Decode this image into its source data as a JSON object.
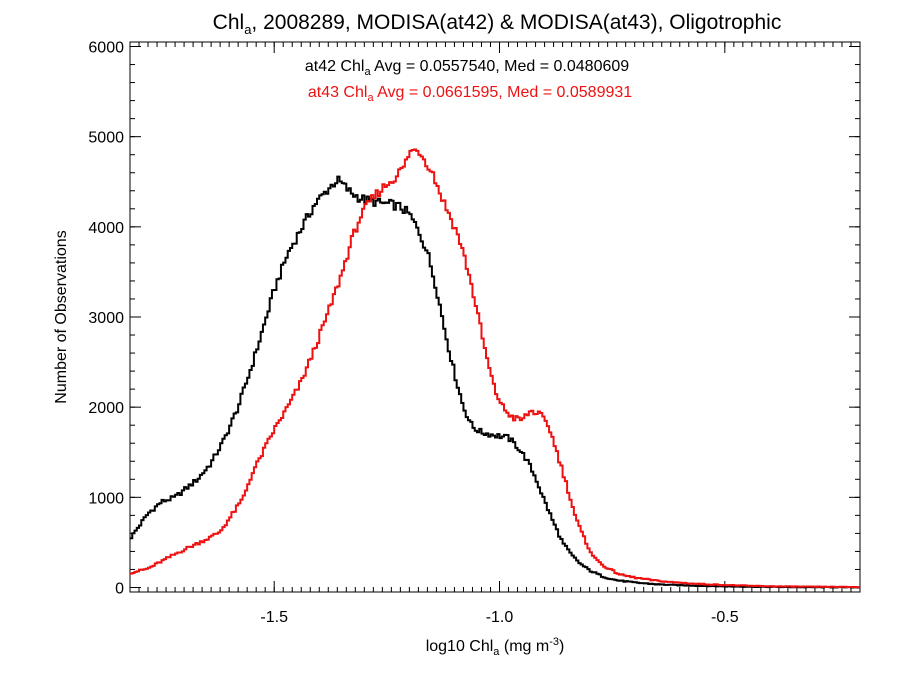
{
  "chart_data": {
    "type": "histogram-step",
    "title": {
      "prefix": "Chl",
      "subscript": "a",
      "suffix": ", 2008289, MODISA(at42) & MODISA(at43), Oligotrophic"
    },
    "xlabel": {
      "prefix": "log10 Chl",
      "subscript": "a",
      "middle": " (mg m",
      "superscript": "-3",
      "suffix": ")"
    },
    "ylabel": "Number of Observations",
    "xlim": [
      -1.82,
      -0.2
    ],
    "ylim": [
      -50,
      6050
    ],
    "xticks": [
      -1.5,
      -1.0,
      -0.5
    ],
    "xtick_labels": [
      "-1.5",
      "-1.0",
      "-0.5"
    ],
    "yticks": [
      0,
      1000,
      2000,
      3000,
      4000,
      5000,
      6000
    ],
    "ytick_labels": [
      "0",
      "1000",
      "2000",
      "3000",
      "4000",
      "5000",
      "6000"
    ],
    "grid": false,
    "series": [
      {
        "name": "at42",
        "color": "#000000",
        "stats": {
          "prefix": "at42 Chl",
          "subscript": "a",
          "suffix": " Avg = 0.0557540, Med = 0.0480609"
        },
        "points": [
          [
            -1.82,
            540
          ],
          [
            -1.78,
            820
          ],
          [
            -1.75,
            950
          ],
          [
            -1.72,
            1000
          ],
          [
            -1.7,
            1080
          ],
          [
            -1.67,
            1200
          ],
          [
            -1.64,
            1380
          ],
          [
            -1.61,
            1650
          ],
          [
            -1.58,
            2000
          ],
          [
            -1.55,
            2450
          ],
          [
            -1.52,
            2950
          ],
          [
            -1.5,
            3300
          ],
          [
            -1.47,
            3700
          ],
          [
            -1.44,
            3980
          ],
          [
            -1.41,
            4250
          ],
          [
            -1.38,
            4420
          ],
          [
            -1.36,
            4520
          ],
          [
            -1.35,
            4480
          ],
          [
            -1.33,
            4380
          ],
          [
            -1.31,
            4320
          ],
          [
            -1.29,
            4290
          ],
          [
            -1.26,
            4260
          ],
          [
            -1.24,
            4250
          ],
          [
            -1.22,
            4220
          ],
          [
            -1.2,
            4140
          ],
          [
            -1.18,
            3960
          ],
          [
            -1.16,
            3720
          ],
          [
            -1.14,
            3320
          ],
          [
            -1.12,
            2820
          ],
          [
            -1.1,
            2380
          ],
          [
            -1.08,
            2000
          ],
          [
            -1.06,
            1780
          ],
          [
            -1.04,
            1720
          ],
          [
            -1.01,
            1690
          ],
          [
            -0.98,
            1660
          ],
          [
            -0.96,
            1560
          ],
          [
            -0.94,
            1420
          ],
          [
            -0.92,
            1220
          ],
          [
            -0.9,
            960
          ],
          [
            -0.88,
            720
          ],
          [
            -0.86,
            500
          ],
          [
            -0.84,
            360
          ],
          [
            -0.82,
            260
          ],
          [
            -0.8,
            190
          ],
          [
            -0.77,
            120
          ],
          [
            -0.74,
            80
          ],
          [
            -0.7,
            55
          ],
          [
            -0.65,
            35
          ],
          [
            -0.6,
            25
          ],
          [
            -0.5,
            12
          ],
          [
            -0.4,
            6
          ],
          [
            -0.3,
            3
          ],
          [
            -0.2,
            2
          ]
        ]
      },
      {
        "name": "at43",
        "color": "#ee1111",
        "stats": {
          "prefix": "at43 Chl",
          "subscript": "a",
          "suffix": " Avg = 0.0661595, Med = 0.0589931"
        },
        "points": [
          [
            -1.82,
            160
          ],
          [
            -1.78,
            210
          ],
          [
            -1.75,
            290
          ],
          [
            -1.72,
            370
          ],
          [
            -1.7,
            420
          ],
          [
            -1.67,
            490
          ],
          [
            -1.64,
            560
          ],
          [
            -1.62,
            620
          ],
          [
            -1.6,
            760
          ],
          [
            -1.57,
            980
          ],
          [
            -1.55,
            1250
          ],
          [
            -1.52,
            1550
          ],
          [
            -1.5,
            1750
          ],
          [
            -1.47,
            2000
          ],
          [
            -1.44,
            2280
          ],
          [
            -1.41,
            2650
          ],
          [
            -1.38,
            3050
          ],
          [
            -1.35,
            3480
          ],
          [
            -1.33,
            3820
          ],
          [
            -1.31,
            4100
          ],
          [
            -1.29,
            4260
          ],
          [
            -1.27,
            4380
          ],
          [
            -1.25,
            4470
          ],
          [
            -1.23,
            4560
          ],
          [
            -1.21,
            4680
          ],
          [
            -1.2,
            4830
          ],
          [
            -1.18,
            4860
          ],
          [
            -1.17,
            4780
          ],
          [
            -1.15,
            4620
          ],
          [
            -1.13,
            4350
          ],
          [
            -1.11,
            4120
          ],
          [
            -1.09,
            3880
          ],
          [
            -1.07,
            3520
          ],
          [
            -1.05,
            3080
          ],
          [
            -1.03,
            2580
          ],
          [
            -1.01,
            2180
          ],
          [
            -0.99,
            1980
          ],
          [
            -0.97,
            1880
          ],
          [
            -0.95,
            1860
          ],
          [
            -0.93,
            1960
          ],
          [
            -0.91,
            1920
          ],
          [
            -0.89,
            1780
          ],
          [
            -0.87,
            1460
          ],
          [
            -0.85,
            1120
          ],
          [
            -0.83,
            760
          ],
          [
            -0.81,
            520
          ],
          [
            -0.79,
            330
          ],
          [
            -0.76,
            210
          ],
          [
            -0.73,
            140
          ],
          [
            -0.7,
            110
          ],
          [
            -0.66,
            80
          ],
          [
            -0.62,
            60
          ],
          [
            -0.56,
            40
          ],
          [
            -0.5,
            28
          ],
          [
            -0.44,
            18
          ],
          [
            -0.38,
            12
          ],
          [
            -0.3,
            8
          ],
          [
            -0.2,
            5
          ]
        ]
      }
    ]
  }
}
